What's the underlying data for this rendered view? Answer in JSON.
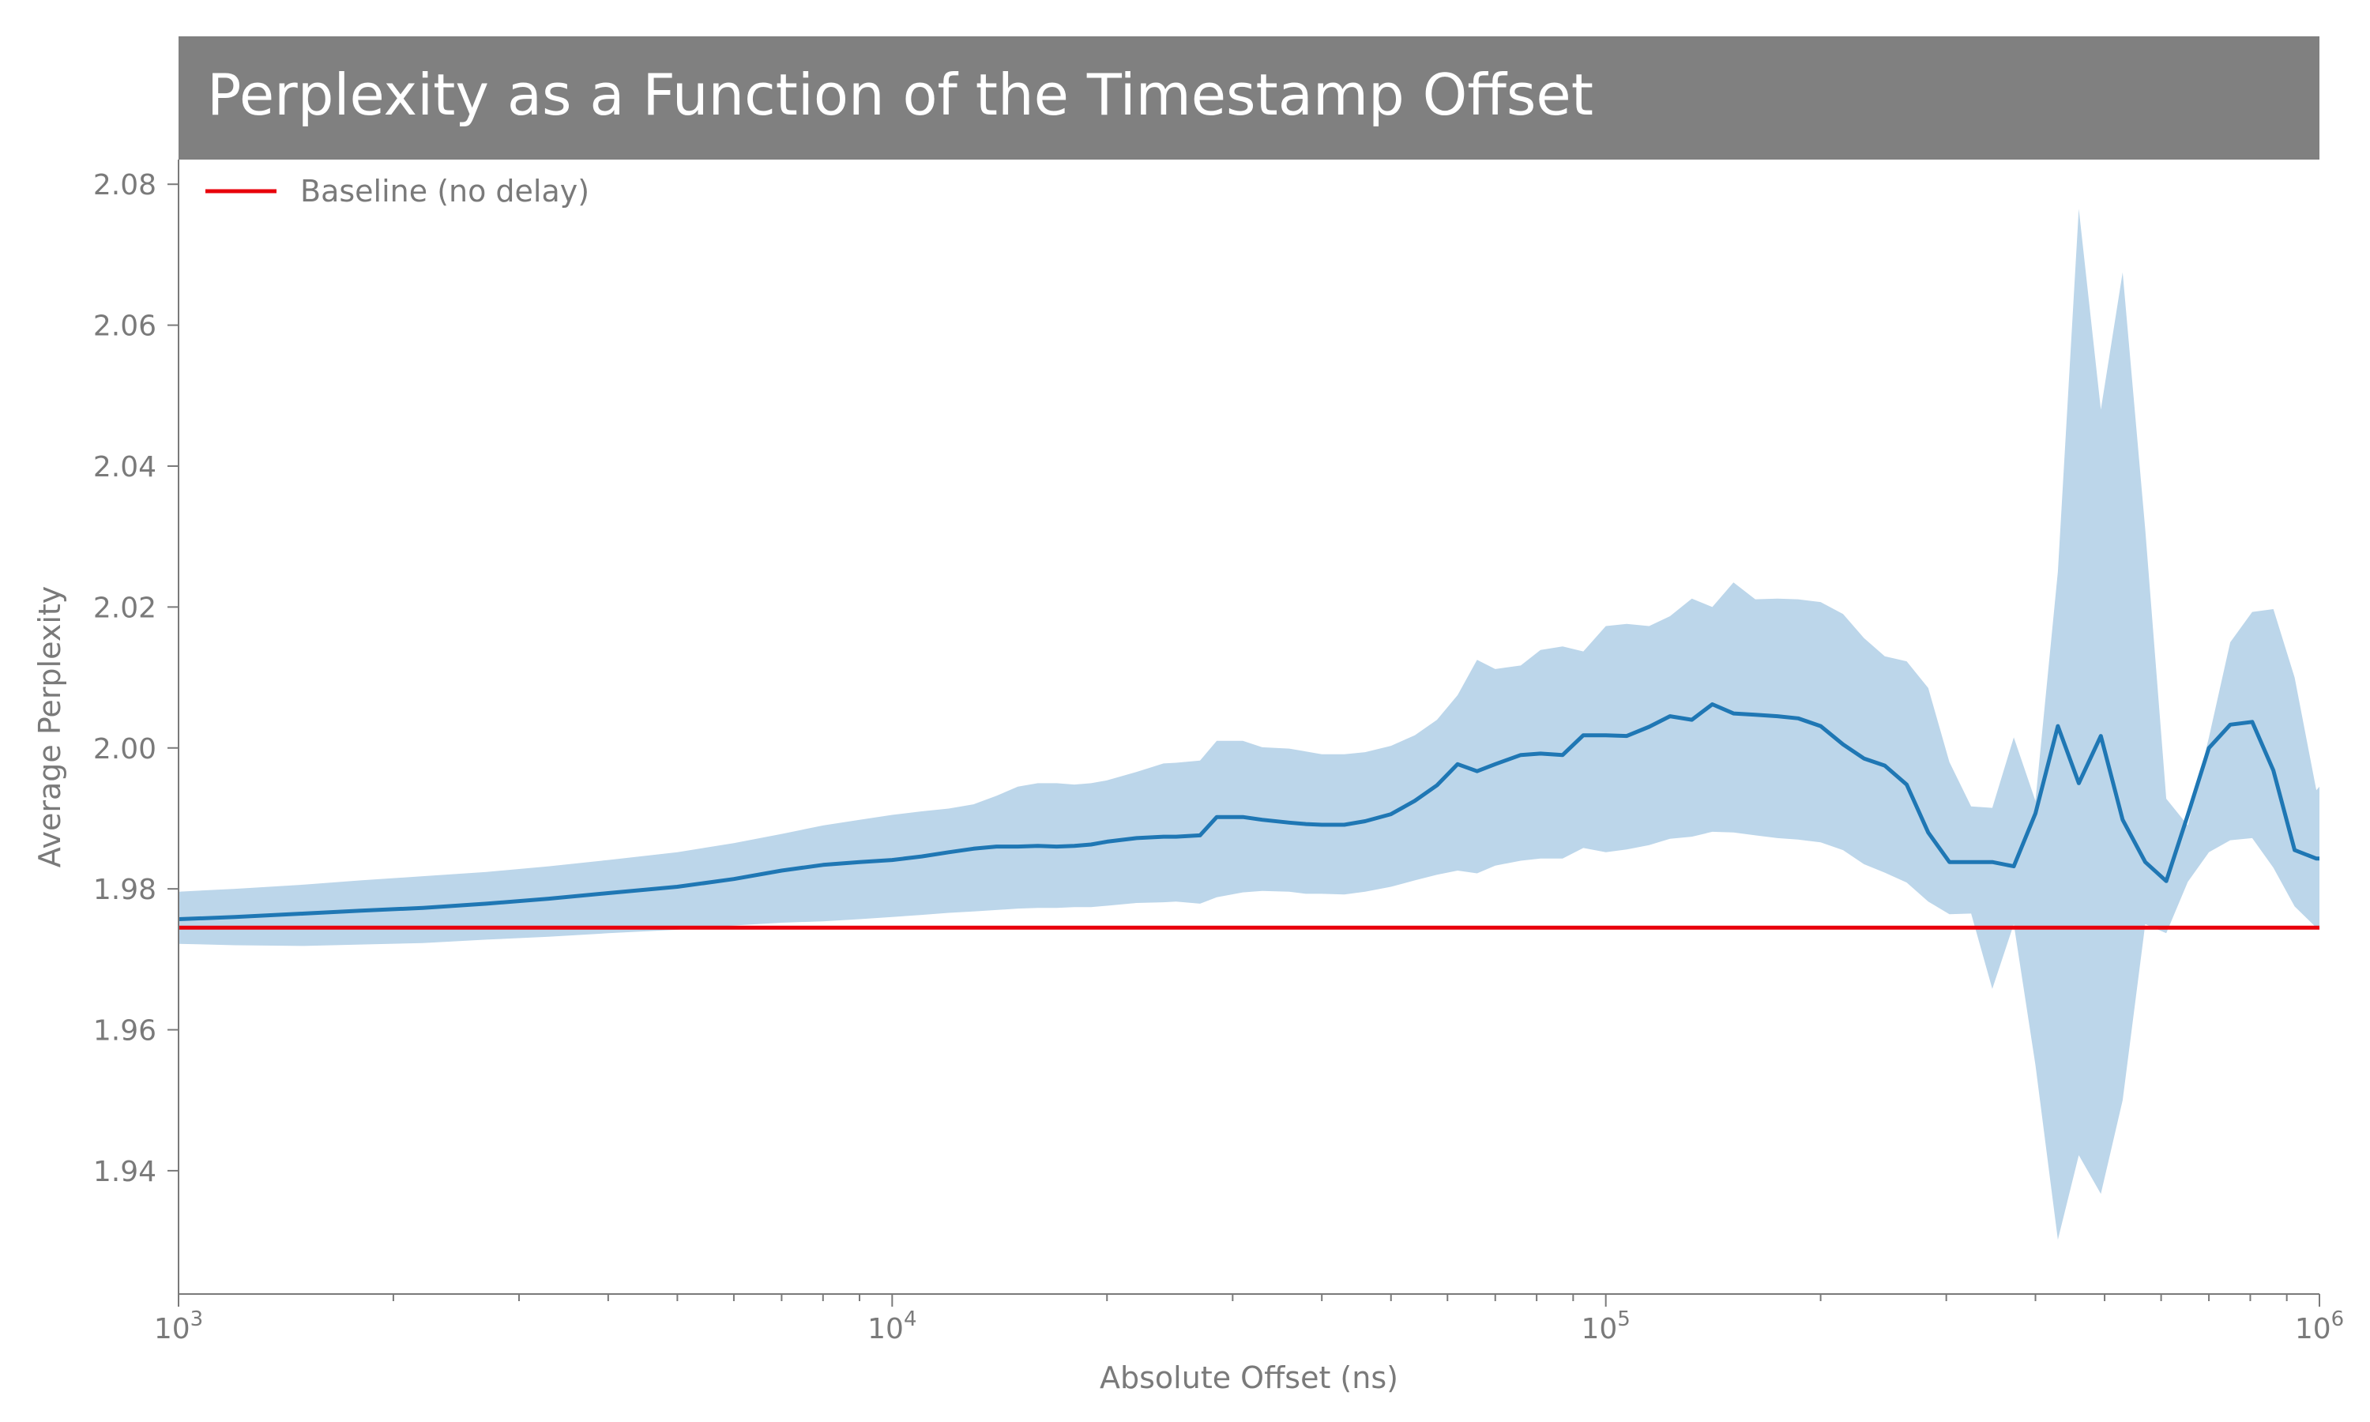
{
  "chart_data": {
    "type": "line",
    "title": "Perplexity as a Function of the Timestamp Offset",
    "xlabel": "Absolute Offset (ns)",
    "ylabel": "Average Perplexity",
    "xscale": "log",
    "xlim": [
      1000,
      1000000
    ],
    "ylim": [
      1.9225,
      2.0835
    ],
    "x_ticks": [
      {
        "value": 1000,
        "base": "10",
        "exp": "3"
      },
      {
        "value": 10000,
        "base": "10",
        "exp": "4"
      },
      {
        "value": 100000,
        "base": "10",
        "exp": "5"
      },
      {
        "value": 1000000,
        "base": "10",
        "exp": "6"
      }
    ],
    "y_ticks": [
      "1.94",
      "1.96",
      "1.98",
      "2.00",
      "2.02",
      "2.04",
      "2.06",
      "2.08"
    ],
    "grid": false,
    "legend": {
      "placement": "top-left",
      "entries": [
        "Baseline (no delay)"
      ]
    },
    "series": [
      {
        "type": "line-with-band",
        "color": "#1f77b4",
        "band_color": "#bcd6ea",
        "x": [
          1000,
          1200,
          1500,
          1800,
          2200,
          2700,
          3300,
          4000,
          5000,
          6000,
          7000,
          8000,
          9000,
          10000,
          11000,
          12000,
          13000,
          14000,
          15000,
          16000,
          17000,
          18000,
          19000,
          20000,
          22000,
          24000,
          25000,
          27000,
          28500,
          31000,
          33000,
          36000,
          38000,
          40000,
          43000,
          46000,
          50000,
          54000,
          58000,
          62000,
          66000,
          70000,
          76000,
          81000,
          87000,
          93000,
          100000,
          107000,
          115000,
          123000,
          132000,
          141000,
          151000,
          162000,
          174000,
          186000,
          200000,
          215000,
          230000,
          246000,
          264000,
          283000,
          303000,
          325000,
          348000,
          373000,
          400000,
          430000,
          460000,
          494000,
          530000,
          570000,
          610000,
          654000,
          700000,
          750000,
          805000,
          862000,
          923000,
          990000,
          1000000
        ],
        "y": [
          1.9757,
          1.976,
          1.9765,
          1.9769,
          1.9773,
          1.9779,
          1.9786,
          1.9794,
          1.9803,
          1.9814,
          1.9826,
          1.9834,
          1.9838,
          1.9841,
          1.9846,
          1.9852,
          1.9857,
          1.986,
          1.986,
          1.9861,
          1.986,
          1.9861,
          1.9863,
          1.9867,
          1.9872,
          1.9874,
          1.9874,
          1.9876,
          1.9902,
          1.9902,
          1.9898,
          1.9894,
          1.9892,
          1.9891,
          1.9891,
          1.9896,
          1.9906,
          1.9925,
          1.9947,
          1.9977,
          1.9967,
          1.9977,
          1.999,
          1.9992,
          1.999,
          2.0018,
          2.0018,
          2.0017,
          2.003,
          2.0045,
          2.004,
          2.0062,
          2.0049,
          2.0047,
          2.0045,
          2.0042,
          2.0031,
          2.0005,
          1.9985,
          1.9975,
          1.9948,
          1.988,
          1.9838,
          1.9838,
          1.9838,
          1.9832,
          1.9907,
          2.0031,
          1.995,
          2.0017,
          1.9898,
          1.9838,
          1.9811,
          1.9905,
          2.0,
          2.0033,
          2.0037,
          1.9968,
          1.9855,
          1.9843,
          1.9843
        ],
        "lower": [
          1.9722,
          1.972,
          1.9719,
          1.9721,
          1.9723,
          1.9728,
          1.9732,
          1.9737,
          1.9742,
          1.9748,
          1.9752,
          1.9754,
          1.9757,
          1.976,
          1.9763,
          1.9766,
          1.9768,
          1.977,
          1.9772,
          1.9773,
          1.9773,
          1.9774,
          1.9774,
          1.9776,
          1.978,
          1.9781,
          1.9782,
          1.9779,
          1.9788,
          1.9795,
          1.9797,
          1.9796,
          1.9793,
          1.9793,
          1.9792,
          1.9796,
          1.9803,
          1.9812,
          1.982,
          1.9826,
          1.9822,
          1.9833,
          1.984,
          1.9843,
          1.9843,
          1.9858,
          1.9852,
          1.9856,
          1.9862,
          1.9871,
          1.9874,
          1.9881,
          1.988,
          1.9876,
          1.9872,
          1.987,
          1.9866,
          1.9855,
          1.9835,
          1.9823,
          1.9809,
          1.9782,
          1.9764,
          1.9765,
          1.9658,
          1.975,
          1.955,
          1.9302,
          1.9422,
          1.9367,
          1.95,
          1.975,
          1.9737,
          1.981,
          1.9852,
          1.9869,
          1.9872,
          1.983,
          1.9775,
          1.9745,
          1.9745
        ],
        "upper": [
          1.9796,
          1.98,
          1.9806,
          1.9812,
          1.9818,
          1.9824,
          1.9832,
          1.9841,
          1.9852,
          1.9865,
          1.9878,
          1.989,
          1.9898,
          1.9905,
          1.991,
          1.9914,
          1.992,
          1.9932,
          1.9945,
          1.995,
          1.995,
          1.9948,
          1.995,
          1.9954,
          1.9966,
          1.9978,
          1.9979,
          1.9982,
          2.001,
          2.001,
          2.0001,
          1.9999,
          1.9995,
          1.9991,
          1.9991,
          1.9994,
          2.0003,
          2.0018,
          2.004,
          2.0075,
          2.0125,
          2.0112,
          2.0117,
          2.0139,
          2.0144,
          2.0137,
          2.0173,
          2.0176,
          2.0173,
          2.0187,
          2.0212,
          2.02,
          2.0235,
          2.0211,
          2.0212,
          2.0211,
          2.0207,
          2.019,
          2.0156,
          2.013,
          2.0123,
          2.0085,
          1.998,
          1.9917,
          1.9915,
          2.0015,
          1.9925,
          2.025,
          2.0765,
          2.048,
          2.0675,
          2.031,
          1.9928,
          1.989,
          2.0015,
          2.015,
          2.0193,
          2.0197,
          2.01,
          1.994,
          1.9945
        ]
      },
      {
        "type": "hline",
        "name": "Baseline (no delay)",
        "color": "#e8000b",
        "value": 1.9745
      }
    ]
  }
}
